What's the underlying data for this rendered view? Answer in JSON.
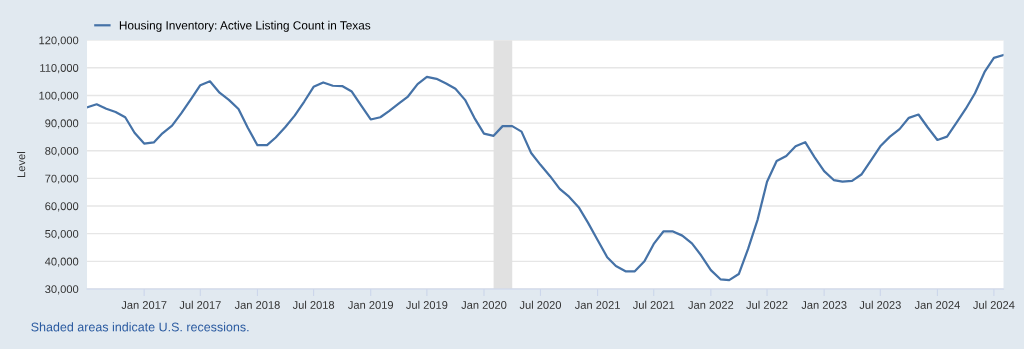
{
  "chart_data": {
    "type": "line",
    "ylabel": "Level",
    "x": [
      "2016-07",
      "2016-08",
      "2016-09",
      "2016-10",
      "2016-11",
      "2016-12",
      "2017-01",
      "2017-02",
      "2017-03",
      "2017-04",
      "2017-05",
      "2017-06",
      "2017-07",
      "2017-08",
      "2017-09",
      "2017-10",
      "2017-11",
      "2017-12",
      "2018-01",
      "2018-02",
      "2018-03",
      "2018-04",
      "2018-05",
      "2018-06",
      "2018-07",
      "2018-08",
      "2018-09",
      "2018-10",
      "2018-11",
      "2018-12",
      "2019-01",
      "2019-02",
      "2019-03",
      "2019-04",
      "2019-05",
      "2019-06",
      "2019-07",
      "2019-08",
      "2019-09",
      "2019-10",
      "2019-11",
      "2019-12",
      "2020-01",
      "2020-02",
      "2020-03",
      "2020-04",
      "2020-05",
      "2020-06",
      "2020-07",
      "2020-08",
      "2020-09",
      "2020-10",
      "2020-11",
      "2020-12",
      "2021-01",
      "2021-02",
      "2021-03",
      "2021-04",
      "2021-05",
      "2021-06",
      "2021-07",
      "2021-08",
      "2021-09",
      "2021-10",
      "2021-11",
      "2021-12",
      "2022-01",
      "2022-02",
      "2022-03",
      "2022-04",
      "2022-05",
      "2022-06",
      "2022-07",
      "2022-08",
      "2022-09",
      "2022-10",
      "2022-11",
      "2022-12",
      "2023-01",
      "2023-02",
      "2023-03",
      "2023-04",
      "2023-05",
      "2023-06",
      "2023-07",
      "2023-08",
      "2023-09",
      "2023-10",
      "2023-11",
      "2023-12",
      "2024-01",
      "2024-02",
      "2024-03",
      "2024-04",
      "2024-05",
      "2024-06",
      "2024-07",
      "2024-08"
    ],
    "series": [
      {
        "name": "Housing Inventory: Active Listing Count in Texas",
        "color": "#4572a7",
        "values": [
          95700,
          96800,
          95200,
          94000,
          92100,
          86500,
          82600,
          83000,
          86300,
          89100,
          93600,
          98700,
          103700,
          105100,
          101000,
          98400,
          95100,
          88300,
          82000,
          82000,
          84800,
          88600,
          92700,
          97800,
          103100,
          104700,
          103500,
          103400,
          101400,
          96400,
          91300,
          92100,
          94300,
          97000,
          99600,
          104100,
          106700,
          106000,
          104300,
          102400,
          98400,
          91900,
          86200,
          85400,
          88900,
          88900,
          86900,
          79200,
          74900,
          70800,
          66200,
          63400,
          59600,
          54000,
          47700,
          41500,
          38300,
          36400,
          36400,
          40000,
          46300,
          50800,
          50800,
          49300,
          46500,
          42100,
          36800,
          33500,
          33200,
          35400,
          44500,
          55200,
          68800,
          76300,
          78100,
          81600,
          83100,
          77700,
          72600,
          69400,
          68800,
          69100,
          71400,
          76500,
          81600,
          85100,
          87800,
          91900,
          93100,
          88400,
          83900,
          85100,
          89900,
          95100,
          100800,
          108500,
          113600,
          114600
        ]
      }
    ],
    "xlim": [
      "2016-07",
      "2024-08"
    ],
    "xticks": [
      {
        "value": "2017-01",
        "label": "Jan 2017"
      },
      {
        "value": "2017-07",
        "label": "Jul 2017"
      },
      {
        "value": "2018-01",
        "label": "Jan 2018"
      },
      {
        "value": "2018-07",
        "label": "Jul 2018"
      },
      {
        "value": "2019-01",
        "label": "Jan 2019"
      },
      {
        "value": "2019-07",
        "label": "Jul 2019"
      },
      {
        "value": "2020-01",
        "label": "Jan 2020"
      },
      {
        "value": "2020-07",
        "label": "Jul 2020"
      },
      {
        "value": "2021-01",
        "label": "Jan 2021"
      },
      {
        "value": "2021-07",
        "label": "Jul 2021"
      },
      {
        "value": "2022-01",
        "label": "Jan 2022"
      },
      {
        "value": "2022-07",
        "label": "Jul 2022"
      },
      {
        "value": "2023-01",
        "label": "Jan 2023"
      },
      {
        "value": "2023-07",
        "label": "Jul 2023"
      },
      {
        "value": "2024-01",
        "label": "Jan 2024"
      },
      {
        "value": "2024-07",
        "label": "Jul 2024"
      }
    ],
    "ylim": [
      30000,
      120000
    ],
    "yticks": [
      {
        "value": 30000,
        "label": "30,000"
      },
      {
        "value": 40000,
        "label": "40,000"
      },
      {
        "value": 50000,
        "label": "50,000"
      },
      {
        "value": 60000,
        "label": "60,000"
      },
      {
        "value": 70000,
        "label": "70,000"
      },
      {
        "value": 80000,
        "label": "80,000"
      },
      {
        "value": 90000,
        "label": "90,000"
      },
      {
        "value": 100000,
        "label": "100,000"
      },
      {
        "value": 110000,
        "label": "110,000"
      },
      {
        "value": 120000,
        "label": "120,000"
      }
    ],
    "bands": [
      {
        "axis": "x",
        "from": "2020-02",
        "to": "2020-04",
        "color": "#e1e1e1"
      }
    ],
    "annotations": [
      "Shaded areas indicate U.S. recessions."
    ],
    "grid": "y",
    "legend": "top left",
    "marker": "none",
    "line_style": "solid"
  }
}
